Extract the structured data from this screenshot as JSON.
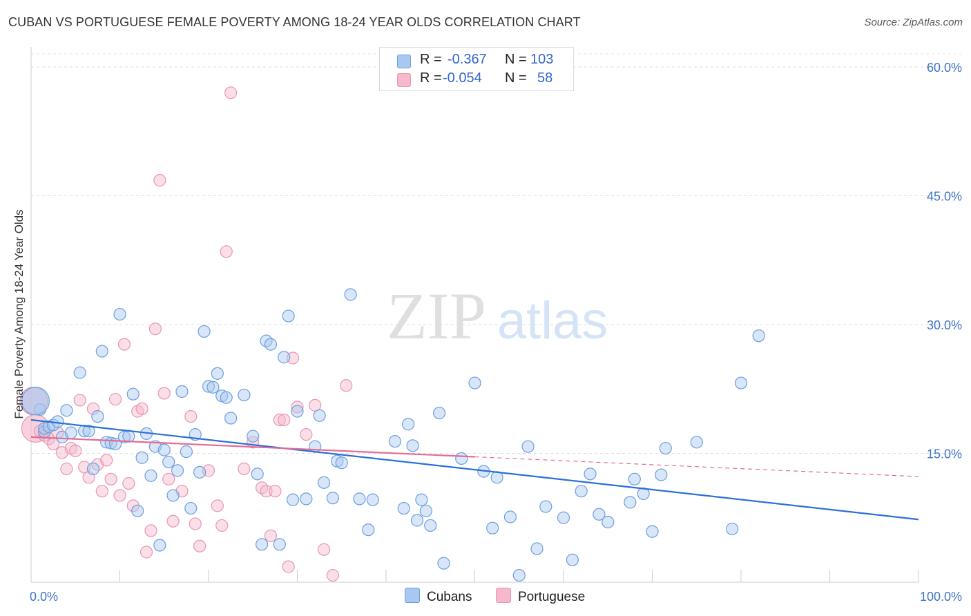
{
  "title": "CUBAN VS PORTUGUESE FEMALE POVERTY AMONG 18-24 YEAR OLDS CORRELATION CHART",
  "source": "Source: ZipAtlas.com",
  "watermark": {
    "zip": "ZIP",
    "atlas": "atlas"
  },
  "legend_stats": [
    {
      "r_label": "R =",
      "r_value": "-0.367",
      "n_label": "N =",
      "n_value": "103",
      "color": "#a8c8f0"
    },
    {
      "r_label": "R =",
      "r_value": "-0.054",
      "n_label": "N =",
      "n_value": "58",
      "color": "#f5b8cc"
    }
  ],
  "bottom_legend": [
    {
      "name": "Cubans",
      "color": "#a8c8f0"
    },
    {
      "name": "Portuguese",
      "color": "#f5b8cc"
    }
  ],
  "chart_data": {
    "type": "scatter",
    "title": "CUBAN VS PORTUGUESE FEMALE POVERTY AMONG 18-24 YEAR OLDS CORRELATION CHART",
    "xlabel": "",
    "ylabel": "Female Poverty Among 18-24 Year Olds",
    "xlim": [
      0,
      100
    ],
    "ylim": [
      0,
      60
    ],
    "x_ticks": [
      "0.0%",
      "100.0%"
    ],
    "y_ticks": [
      {
        "value": 15,
        "label": "15.0%"
      },
      {
        "value": 30,
        "label": "30.0%"
      },
      {
        "value": 45,
        "label": "45.0%"
      },
      {
        "value": 60,
        "label": "60.0%"
      }
    ],
    "grid": true,
    "series": [
      {
        "name": "Cubans",
        "color": "#6a9fe0",
        "fill": "#a8c8f0",
        "trend": {
          "x0": 0,
          "y0": 18.9,
          "x1": 100,
          "y1": 7.3,
          "color": "#2b6fd6"
        },
        "points": [
          [
            1,
            20.1
          ],
          [
            1.5,
            17.5
          ],
          [
            1.5,
            17.9
          ],
          [
            2,
            18.1
          ],
          [
            2.5,
            18.3
          ],
          [
            3,
            18.7
          ],
          [
            3.5,
            16.9
          ],
          [
            4,
            20
          ],
          [
            4.5,
            17.4
          ],
          [
            5.5,
            24.4
          ],
          [
            6,
            17.6
          ],
          [
            6.5,
            17.6
          ],
          [
            7,
            13.2
          ],
          [
            7.5,
            19.3
          ],
          [
            8,
            26.9
          ],
          [
            8.5,
            16.3
          ],
          [
            9,
            16.2
          ],
          [
            9.5,
            16.1
          ],
          [
            10,
            31.2
          ],
          [
            10.5,
            16.9
          ],
          [
            11,
            17
          ],
          [
            11.5,
            21.9
          ],
          [
            12,
            8.3
          ],
          [
            12.5,
            14.5
          ],
          [
            13,
            17.3
          ],
          [
            13.5,
            12.4
          ],
          [
            14,
            15.8
          ],
          [
            14.5,
            4.3
          ],
          [
            15,
            15.4
          ],
          [
            15.5,
            14
          ],
          [
            16,
            10.1
          ],
          [
            16.5,
            13
          ],
          [
            17,
            22.2
          ],
          [
            17.5,
            15.2
          ],
          [
            18,
            8.6
          ],
          [
            18.5,
            17.2
          ],
          [
            19,
            12.8
          ],
          [
            19.5,
            29.2
          ],
          [
            20,
            22.8
          ],
          [
            20.5,
            22.7
          ],
          [
            21,
            24.3
          ],
          [
            21.5,
            21.7
          ],
          [
            22,
            21.5
          ],
          [
            22.5,
            19.1
          ],
          [
            24,
            21.8
          ],
          [
            25,
            17
          ],
          [
            25.5,
            12.6
          ],
          [
            26,
            4.4
          ],
          [
            26.5,
            28.1
          ],
          [
            27,
            27.7
          ],
          [
            28,
            4.4
          ],
          [
            28.5,
            26.2
          ],
          [
            29,
            31
          ],
          [
            29.5,
            9.6
          ],
          [
            30,
            19.9
          ],
          [
            31,
            9.7
          ],
          [
            32,
            15.8
          ],
          [
            32.5,
            19.4
          ],
          [
            33,
            11.6
          ],
          [
            34,
            9.8
          ],
          [
            34.5,
            14.1
          ],
          [
            35,
            13.9
          ],
          [
            36,
            33.5
          ],
          [
            37,
            9.7
          ],
          [
            38,
            6.1
          ],
          [
            38.5,
            9.6
          ],
          [
            41,
            16.4
          ],
          [
            42,
            8.6
          ],
          [
            42.5,
            18.4
          ],
          [
            43,
            15.9
          ],
          [
            43.5,
            7.2
          ],
          [
            44,
            9.6
          ],
          [
            44.5,
            8.3
          ],
          [
            45,
            6.6
          ],
          [
            46,
            19.7
          ],
          [
            46.5,
            2.2
          ],
          [
            48.5,
            14.4
          ],
          [
            50,
            23.2
          ],
          [
            51,
            12.9
          ],
          [
            52,
            6.3
          ],
          [
            52.5,
            12.2
          ],
          [
            54,
            7.6
          ],
          [
            55,
            0.8
          ],
          [
            56,
            15.8
          ],
          [
            57,
            3.9
          ],
          [
            58,
            8.8
          ],
          [
            60,
            7.5
          ],
          [
            61,
            2.6
          ],
          [
            62,
            10.6
          ],
          [
            63,
            12.6
          ],
          [
            64,
            7.9
          ],
          [
            65,
            7
          ],
          [
            67.5,
            9.3
          ],
          [
            68,
            12
          ],
          [
            69,
            10.3
          ],
          [
            70,
            5.9
          ],
          [
            71,
            12.5
          ],
          [
            71.5,
            15.6
          ],
          [
            75,
            16.3
          ],
          [
            79,
            6.2
          ],
          [
            80,
            23.2
          ],
          [
            82,
            28.7
          ],
          [
            0.5,
            21.1
          ]
        ]
      },
      {
        "name": "Portuguese",
        "color": "#e996b0",
        "fill": "#f5b8cc",
        "trend": {
          "x0": 0,
          "y0": 16.9,
          "x1": 50,
          "y1": 14.6,
          "color": "#e36b94",
          "dash_to": {
            "x": 100,
            "y": 12.3
          }
        },
        "points": [
          [
            0.5,
            17.9
          ],
          [
            1,
            17.6
          ],
          [
            1.5,
            17.1
          ],
          [
            2,
            16.7
          ],
          [
            2.5,
            16.1
          ],
          [
            3,
            17.4
          ],
          [
            3.5,
            15.1
          ],
          [
            4,
            13.2
          ],
          [
            4.5,
            15.6
          ],
          [
            5,
            15.3
          ],
          [
            5.5,
            21.2
          ],
          [
            6,
            13.4
          ],
          [
            6.5,
            12.2
          ],
          [
            7,
            20.2
          ],
          [
            7.5,
            13.7
          ],
          [
            8,
            10.6
          ],
          [
            8.5,
            14.2
          ],
          [
            9,
            12
          ],
          [
            9.5,
            21.3
          ],
          [
            10,
            10.1
          ],
          [
            10.5,
            27.7
          ],
          [
            11,
            11.5
          ],
          [
            11.5,
            8.9
          ],
          [
            12,
            19.9
          ],
          [
            12.5,
            20.2
          ],
          [
            13,
            3.5
          ],
          [
            13.5,
            6
          ],
          [
            14,
            29.5
          ],
          [
            14.5,
            46.8
          ],
          [
            15,
            22
          ],
          [
            15.5,
            12
          ],
          [
            16,
            7.1
          ],
          [
            17,
            10.6
          ],
          [
            18,
            19.3
          ],
          [
            18.5,
            6.8
          ],
          [
            19,
            4.2
          ],
          [
            20,
            13
          ],
          [
            21,
            8.9
          ],
          [
            21.5,
            6.6
          ],
          [
            22,
            38.5
          ],
          [
            22.5,
            57
          ],
          [
            24,
            13.2
          ],
          [
            25,
            16.3
          ],
          [
            26,
            11
          ],
          [
            26.5,
            10.6
          ],
          [
            27,
            5.4
          ],
          [
            27.5,
            10.6
          ],
          [
            28,
            18.9
          ],
          [
            28.5,
            18.9
          ],
          [
            29,
            1.8
          ],
          [
            29.5,
            26.1
          ],
          [
            30,
            20.4
          ],
          [
            31,
            17.2
          ],
          [
            32,
            20.6
          ],
          [
            33,
            3.8
          ],
          [
            34,
            0.8
          ],
          [
            35.5,
            22.9
          ],
          [
            0.3,
            21.1
          ]
        ]
      }
    ]
  }
}
